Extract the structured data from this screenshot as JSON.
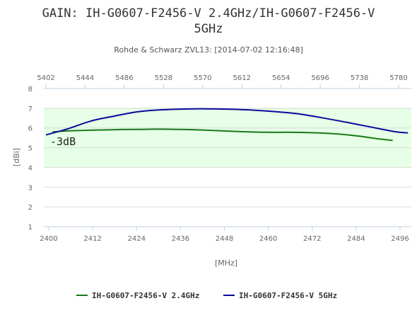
{
  "chart_data": {
    "type": "line",
    "title_lines": [
      "GAIN: IH-G0607-F2456-V 2.4GHz/IH-G0607-F2456-V",
      "5GHz"
    ],
    "subtitle": "Rohde & Schwarz ZVL13: [2014-07-02 12:16:48]",
    "xlabel": "[MHz]",
    "ylabel": "[dBi]",
    "ylim": [
      1,
      8
    ],
    "y_ticks": [
      1,
      2,
      3,
      4,
      5,
      6,
      7,
      8
    ],
    "xlim_bottom": [
      2400,
      2496
    ],
    "x_ticks_bottom": [
      2400,
      2412,
      2424,
      2436,
      2448,
      2460,
      2472,
      2484,
      2496
    ],
    "xlim_top": [
      5402,
      5780
    ],
    "x_ticks_top": [
      5402,
      5444,
      5486,
      5528,
      5570,
      5612,
      5654,
      5696,
      5738,
      5780
    ],
    "band": {
      "from": 4,
      "to": 7,
      "color": "#e6ffe6"
    },
    "annotation": "-3dB",
    "grid": true,
    "legend_position": "bottom",
    "series": [
      {
        "name": "IH-G0607-F2456-V 2.4GHz",
        "axis": "bottom",
        "color": "#1a7a1a",
        "x": [
          2401,
          2405,
          2410,
          2415,
          2420,
          2425,
          2430,
          2435,
          2440,
          2445,
          2450,
          2455,
          2460,
          2465,
          2470,
          2475,
          2480,
          2485,
          2490,
          2494
        ],
        "y": [
          5.8,
          5.85,
          5.88,
          5.9,
          5.92,
          5.93,
          5.94,
          5.93,
          5.91,
          5.87,
          5.83,
          5.8,
          5.78,
          5.78,
          5.77,
          5.74,
          5.68,
          5.58,
          5.45,
          5.37
        ]
      },
      {
        "name": "IH-G0607-F2456-V 5GHz",
        "axis": "top",
        "color": "#0a0a9a",
        "x": [
          5402,
          5425,
          5450,
          5475,
          5500,
          5525,
          5550,
          5575,
          5600,
          5625,
          5650,
          5675,
          5700,
          5725,
          5750,
          5775,
          5790
        ],
        "y": [
          5.65,
          5.95,
          6.35,
          6.6,
          6.82,
          6.92,
          6.96,
          6.97,
          6.95,
          6.9,
          6.82,
          6.7,
          6.5,
          6.28,
          6.05,
          5.82,
          5.75
        ]
      }
    ]
  }
}
